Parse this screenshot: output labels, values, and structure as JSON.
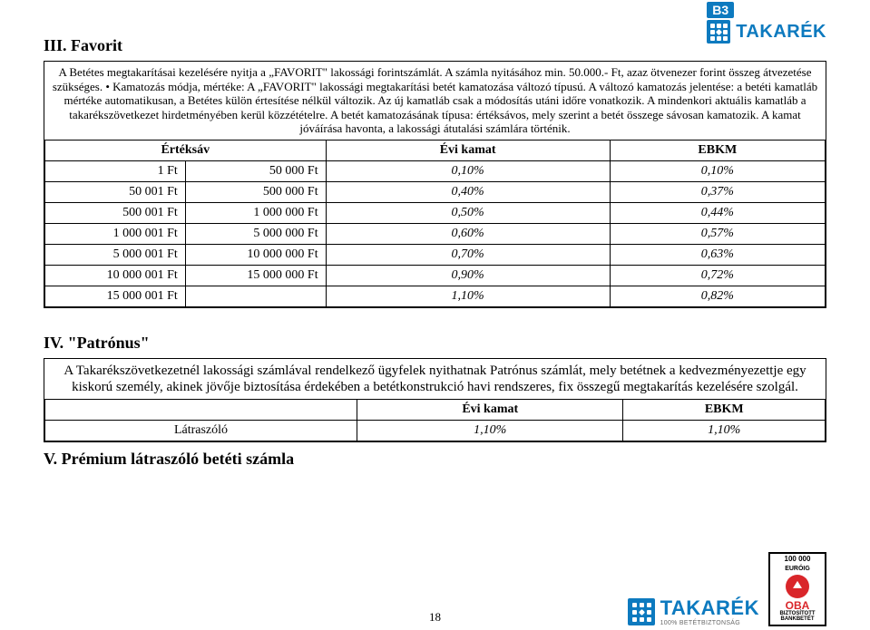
{
  "brand": {
    "name": "TAKARÉK",
    "badge": "B3",
    "color": "#0d7abf"
  },
  "section3": {
    "heading": "III. Favorit",
    "intro": "A Betétes megtakarításai kezelésére nyitja a „FAVORIT\" lakossági forintszámlát. A számla nyitásához min. 50.000.- Ft, azaz ötvenezer forint összeg átvezetése szükséges.    • Kamatozás módja, mértéke: A „FAVORIT\" lakossági megtakarítási betét kamatozása változó típusú. A változó kamatozás jelentése: a betéti kamatláb mértéke automatikusan, a Betétes külön értesítése nélkül változik. Az új kamatláb csak a módosítás utáni időre vonatkozik. A mindenkori aktuális kamatláb a takarékszövetkezet hirdetményében kerül közzétételre. A betét kamatozásának típusa: értéksávos, mely szerint a betét összege sávosan kamatozik. A kamat jóváírása havonta, a lakossági átutalási számlára történik.",
    "columns": {
      "band": "Értéksáv",
      "rate": "Évi kamat",
      "ebkm": "EBKM"
    },
    "rows": [
      {
        "from": "1 Ft",
        "to": "50 000 Ft",
        "rate": "0,10%",
        "ebkm": "0,10%"
      },
      {
        "from": "50 001 Ft",
        "to": "500 000 Ft",
        "rate": "0,40%",
        "ebkm": "0,37%"
      },
      {
        "from": "500 001 Ft",
        "to": "1 000 000 Ft",
        "rate": "0,50%",
        "ebkm": "0,44%"
      },
      {
        "from": "1 000 001 Ft",
        "to": "5 000 000 Ft",
        "rate": "0,60%",
        "ebkm": "0,57%"
      },
      {
        "from": "5 000 001 Ft",
        "to": "10 000 000 Ft",
        "rate": "0,70%",
        "ebkm": "0,63%"
      },
      {
        "from": "10 000 001 Ft",
        "to": "15 000 000 Ft",
        "rate": "0,90%",
        "ebkm": "0,72%"
      },
      {
        "from": "15 000 001 Ft",
        "to": "",
        "rate": "1,10%",
        "ebkm": "0,82%"
      }
    ]
  },
  "section4": {
    "heading": "IV. \"Patrónus\"",
    "intro": "A Takarékszövetkezetnél lakossági számlával rendelkező ügyfelek nyithatnak Patrónus számlát, mely betétnek a kedvezményezettje egy kiskorú személy, akinek jövője biztosítása érdekében a betétkonstrukció havi rendszeres, fix összegű megtakarítás kezelésére szolgál.",
    "columns": {
      "rate": "Évi kamat",
      "ebkm": "EBKM"
    },
    "row": {
      "label": "Látraszóló",
      "rate": "1,10%",
      "ebkm": "1,10%"
    }
  },
  "section5": {
    "heading": "V. Prémium látraszóló betéti számla"
  },
  "oba": {
    "top1": "100 000",
    "top2": "EURÓIG",
    "name": "OBA",
    "sub1": "BIZTOSÍTOTT",
    "sub2": "BANKBETÉT"
  },
  "page_number": "18"
}
